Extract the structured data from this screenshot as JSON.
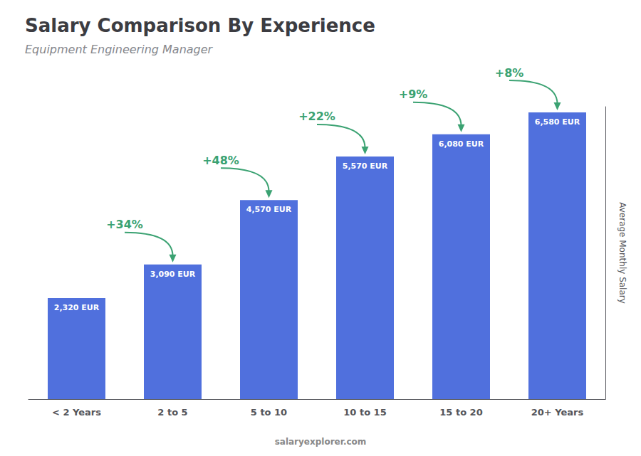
{
  "chart_data": {
    "type": "bar",
    "title": "Salary Comparison By Experience",
    "subtitle": "Equipment Engineering Manager",
    "categories": [
      "< 2 Years",
      "2 to 5",
      "5 to 10",
      "10 to 15",
      "15 to 20",
      "20+ Years"
    ],
    "values": [
      2320,
      3090,
      4570,
      5570,
      6080,
      6580
    ],
    "value_labels": [
      "2,320 EUR",
      "3,090 EUR",
      "4,570 EUR",
      "5,570 EUR",
      "6,080 EUR",
      "6,580 EUR"
    ],
    "data_labels": true,
    "annotations": [
      "+34%",
      "+48%",
      "+22%",
      "+9%",
      "+8%"
    ],
    "ylabel": "Average Monthly Salary",
    "watermark": "salaryexplorer.com",
    "ylim": [
      0,
      6711.6
    ],
    "grid": false,
    "tick_labels": "x"
  }
}
